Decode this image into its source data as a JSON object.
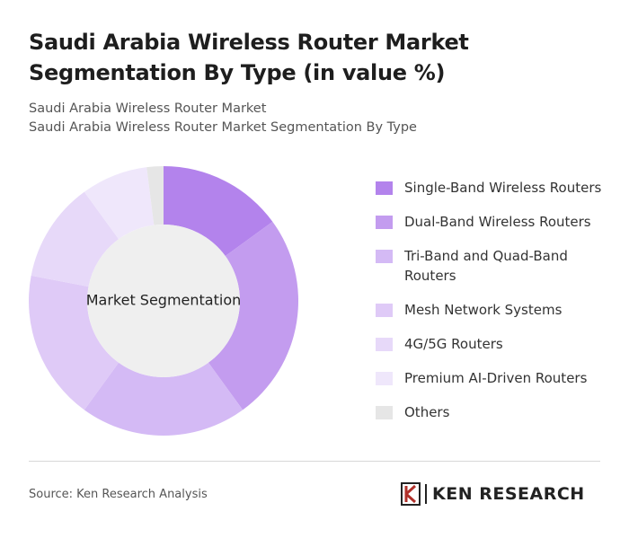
{
  "chart_data": {
    "type": "donut",
    "title": "Saudi Arabia Wireless Router Market Segmentation By Type (in value %)",
    "subtitle": [
      "Saudi Arabia Wireless Router Market",
      "Saudi Arabia Wireless Router Market Segmentation By Type"
    ],
    "center_label": "Market Segmentation",
    "categories": [
      "Single-Band Wireless Routers",
      "Dual-Band Wireless Routers",
      "Tri-Band and Quad-Band Routers",
      "Mesh Network Systems",
      "4G/5G Routers",
      "Premium AI-Driven Routers",
      "Others"
    ],
    "values": [
      15,
      25,
      20,
      18,
      12,
      8,
      2
    ],
    "colors": [
      "#b383ec",
      "#c39cef",
      "#d4baf5",
      "#dfcaf7",
      "#e7d9f9",
      "#efe7fb",
      "#e6e6e6"
    ],
    "source": "Source: Ken Research Analysis",
    "brand": "KEN RESEARCH"
  }
}
